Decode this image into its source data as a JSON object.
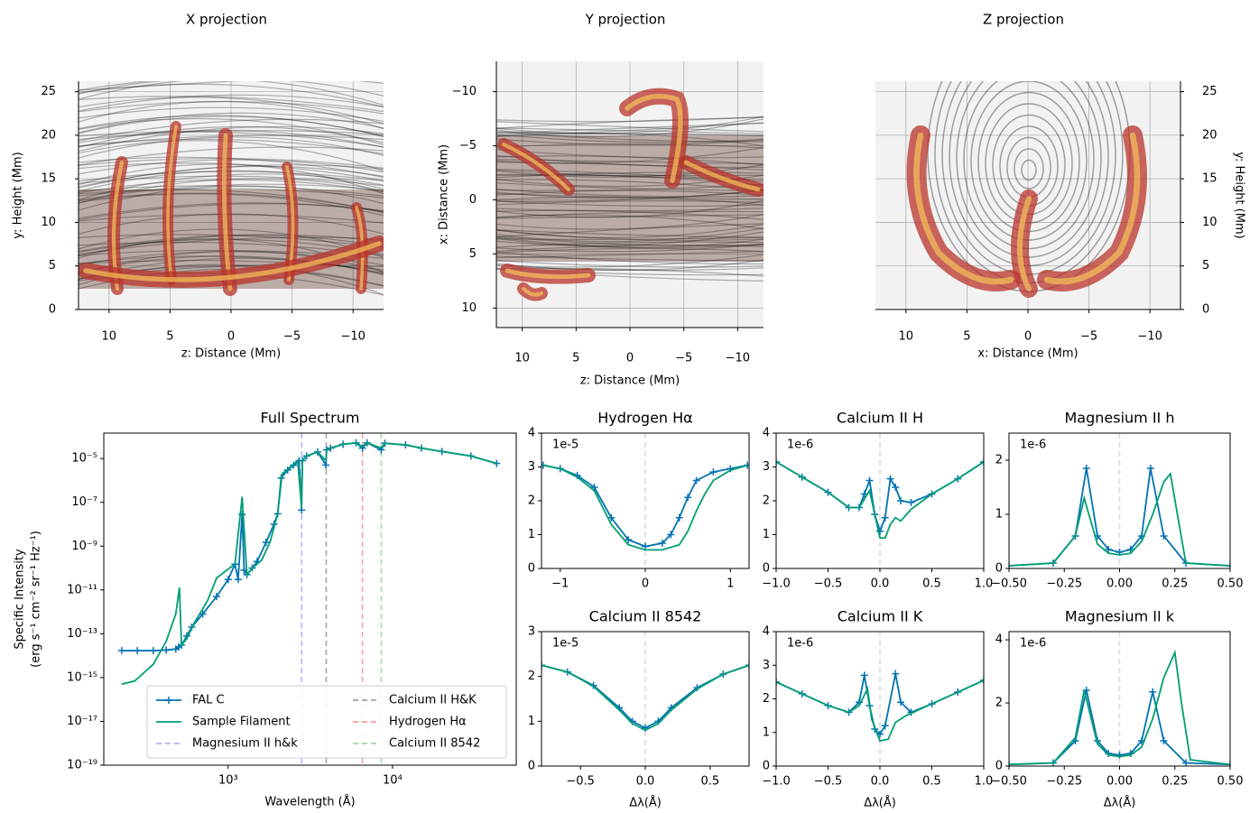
{
  "chart_data": [
    {
      "type": "projection",
      "title": "X projection",
      "xlabel": "z: Distance (Mm)",
      "ylabel": "y: Height (Mm)",
      "xlim": [
        12.5,
        -12.5
      ],
      "ylim": [
        0,
        26.2
      ],
      "xticks": [
        10,
        5,
        0,
        {
          "value": -5,
          "label": "−5"
        },
        {
          "value": -10,
          "label": "−10"
        }
      ],
      "yticks": [
        0,
        5,
        10,
        15,
        20,
        25
      ],
      "grid": true,
      "yaxis": "left"
    },
    {
      "type": "projection",
      "title": "Y projection",
      "xlabel": "z: Distance (Mm)",
      "ylabel": "x: Distance (Mm)",
      "xlim": [
        12.4,
        -12.4
      ],
      "ylim": [
        11.8,
        -12.8
      ],
      "xticks": [
        10,
        5,
        0,
        {
          "value": -5,
          "label": "−5"
        },
        {
          "value": -10,
          "label": "−10"
        }
      ],
      "yticks": [
        {
          "value": -10,
          "label": "−10"
        },
        {
          "value": -5,
          "label": "−5"
        },
        0,
        5,
        10
      ],
      "grid": true,
      "yaxis": "left"
    },
    {
      "type": "projection",
      "title": "Z projection",
      "xlabel": "x: Distance (Mm)",
      "ylabel": "y: Height (Mm)",
      "xlim": [
        12.5,
        -12.5
      ],
      "ylim": [
        0,
        26.2
      ],
      "xticks": [
        10,
        5,
        0,
        {
          "value": -5,
          "label": "−5"
        },
        {
          "value": -10,
          "label": "−10"
        }
      ],
      "yticks": [
        0,
        5,
        10,
        15,
        20,
        25
      ],
      "grid": true,
      "yaxis": "right"
    },
    {
      "type": "line",
      "title": "Full Spectrum",
      "xlabel": "Wavelength (Å)",
      "ylabel": [
        "Specific Intensity",
        "(erg s⁻¹ cm⁻² sr⁻¹ Hz⁻¹)"
      ],
      "xscale": "log",
      "yscale": "log",
      "xlim": [
        175,
        56600
      ],
      "ylim": [
        1e-19,
        0.000145
      ],
      "xticks": [
        {
          "value": 1000,
          "label": "10³"
        },
        {
          "value": 10000,
          "label": "10⁴"
        }
      ],
      "yticks": [
        {
          "value": 1e-19,
          "label": "10⁻¹⁹"
        },
        {
          "value": 1e-17,
          "label": "10⁻¹⁷"
        },
        {
          "value": 1e-15,
          "label": "10⁻¹⁵"
        },
        {
          "value": 1e-13,
          "label": "10⁻¹³"
        },
        {
          "value": 1e-11,
          "label": "10⁻¹¹"
        },
        {
          "value": 1e-09,
          "label": "10⁻⁹"
        },
        {
          "value": 1e-07,
          "label": "10⁻⁷"
        },
        {
          "value": 1e-05,
          "label": "10⁻⁵"
        }
      ],
      "legend": "lower center",
      "series": [
        {
          "name": "FAL C",
          "color": "#0072b2",
          "marker": "+",
          "x": [
            225,
            280,
            350,
            420,
            480,
            500,
            520,
            560,
            600,
            700,
            850,
            1000,
            1100,
            1150,
            1216,
            1250,
            1300,
            1400,
            1500,
            1700,
            1900,
            2000,
            2100,
            2300,
            2500,
            2700,
            2795,
            2830,
            3000,
            3500,
            3934,
            3970,
            4200,
            5000,
            6000,
            6563,
            7000,
            8542,
            9000,
            12000,
            15000,
            20000,
            30000,
            43000
          ],
          "values": [
            1.7e-14,
            1.7e-14,
            1.7e-14,
            1.8e-14,
            2e-14,
            2.5e-14,
            3e-14,
            8e-14,
            2e-13,
            8e-13,
            5e-12,
            3e-11,
            1.5e-10,
            3e-11,
            2.8e-08,
            8e-11,
            5e-11,
            1e-10,
            2e-10,
            1.5e-09,
            1e-08,
            3e-08,
            1.3e-06,
            3e-06,
            5e-06,
            8e-06,
            4.4e-08,
            8e-06,
            1.3e-05,
            2e-05,
            5e-06,
            2.5e-05,
            3e-05,
            4.5e-05,
            5.2e-05,
            3e-05,
            5.2e-05,
            2.5e-05,
            5e-05,
            4.2e-05,
            3e-05,
            2.1e-05,
            1.3e-05,
            6e-06
          ]
        },
        {
          "name": "Sample Filament",
          "color": "#009e73",
          "x": [
            225,
            270,
            350,
            420,
            480,
            505,
            520,
            560,
            620,
            750,
            850,
            1000,
            1100,
            1216,
            1300,
            1400,
            1600,
            1800,
            2000,
            2130,
            2650,
            2795,
            2830,
            3000,
            3500,
            3934,
            3970,
            4200,
            5000,
            6000,
            6563,
            7000,
            8542,
            9000,
            12000,
            15000,
            20000,
            30000,
            43000
          ],
          "values": [
            5e-16,
            7e-16,
            4e-15,
            4.6e-14,
            8e-13,
            1.3e-11,
            3e-14,
            6e-14,
            3e-13,
            3.3e-12,
            3.5e-11,
            9e-11,
            1.5e-10,
            1.8e-07,
            5e-11,
            1e-10,
            2.3e-10,
            1.6e-09,
            3e-08,
            2e-06,
            8e-06,
            6e-08,
            8e-06,
            1.3e-05,
            2e-05,
            8e-06,
            2.5e-05,
            3e-05,
            4.5e-05,
            5.2e-05,
            3.5e-05,
            5.2e-05,
            3e-05,
            5e-05,
            4.2e-05,
            3e-05,
            2.1e-05,
            1.3e-05,
            6e-06
          ]
        }
      ],
      "vlines": [
        {
          "name": "Magnesium II h&k",
          "color": "#b0b0ff",
          "x": 2800
        },
        {
          "name": "Calcium II H&K",
          "color": "#a0a0a0",
          "x": 3950
        },
        {
          "name": "Hydrogen Hα",
          "color": "#ff9a9a",
          "x": 6563
        },
        {
          "name": "Calcium II 8542",
          "color": "#a0d8a0",
          "x": 8542
        }
      ]
    },
    {
      "type": "line",
      "title": "Hydrogen Hα",
      "offset_text": "1e-5",
      "center_line": 0,
      "xlim": [
        -1.22,
        1.22
      ],
      "ylim": [
        0,
        4
      ],
      "xticks": [
        {
          "value": -1,
          "label": "−1"
        },
        0,
        1
      ],
      "yticks": [
        0,
        1,
        2,
        3,
        4
      ],
      "series": [
        {
          "name": "FAL C",
          "color": "#0072b2",
          "marker": "+",
          "x": [
            -1.2,
            -1.0,
            -0.8,
            -0.6,
            -0.4,
            -0.2,
            0,
            0.2,
            0.3,
            0.4,
            0.5,
            0.6,
            0.8,
            1.0,
            1.2
          ],
          "values": [
            3.05,
            2.95,
            2.75,
            2.4,
            1.5,
            0.85,
            0.65,
            0.75,
            1.0,
            1.5,
            2.1,
            2.6,
            2.85,
            2.95,
            3.05
          ]
        },
        {
          "name": "Sample Filament",
          "color": "#009e73",
          "x": [
            -1.2,
            -1.0,
            -0.8,
            -0.6,
            -0.4,
            -0.2,
            0,
            0.2,
            0.4,
            0.5,
            0.6,
            0.7,
            0.8,
            1.0,
            1.2
          ],
          "values": [
            3.05,
            2.95,
            2.7,
            2.3,
            1.3,
            0.7,
            0.55,
            0.55,
            0.7,
            1.1,
            1.7,
            2.2,
            2.6,
            2.9,
            3.05
          ]
        }
      ]
    },
    {
      "type": "line",
      "title": "Calcium II H",
      "offset_text": "1e-6",
      "center_line": 0,
      "xlim": [
        -1,
        1
      ],
      "ylim": [
        0,
        4
      ],
      "xticks": [
        {
          "value": -1,
          "label": "−1.0"
        },
        {
          "value": -0.5,
          "label": "−0.5"
        },
        {
          "value": 0,
          "label": "0.0"
        },
        0.5,
        {
          "value": 1,
          "label": "1.0"
        }
      ],
      "yticks": [
        0,
        1,
        2,
        3,
        4
      ],
      "series": [
        {
          "name": "FAL C",
          "color": "#0072b2",
          "marker": "+",
          "x": [
            -1,
            -0.75,
            -0.5,
            -0.3,
            -0.2,
            -0.15,
            -0.1,
            -0.05,
            0,
            0.05,
            0.1,
            0.15,
            0.2,
            0.3,
            0.5,
            0.75,
            1
          ],
          "values": [
            3.15,
            2.7,
            2.25,
            1.8,
            1.8,
            2.2,
            2.6,
            1.6,
            1.1,
            1.5,
            2.65,
            2.4,
            2.0,
            1.95,
            2.2,
            2.65,
            3.15
          ]
        },
        {
          "name": "Sample Filament",
          "color": "#009e73",
          "x": [
            -1,
            -0.75,
            -0.5,
            -0.3,
            -0.2,
            -0.1,
            -0.05,
            0,
            0.05,
            0.1,
            0.15,
            0.2,
            0.3,
            0.5,
            0.75,
            1
          ],
          "values": [
            3.15,
            2.7,
            2.25,
            1.8,
            1.8,
            2.3,
            1.6,
            0.9,
            0.9,
            1.3,
            1.5,
            1.4,
            1.75,
            2.2,
            2.65,
            3.15
          ]
        }
      ]
    },
    {
      "type": "line",
      "title": "Magnesium II h",
      "offset_text": "1e-6",
      "center_line": 0,
      "xlim": [
        -0.5,
        0.5
      ],
      "ylim": [
        0,
        2.5
      ],
      "xticks": [
        {
          "value": -0.5,
          "label": "−0.50"
        },
        {
          "value": -0.25,
          "label": "−0.25"
        },
        {
          "value": 0,
          "label": "0.00"
        },
        0.25,
        {
          "value": 0.5,
          "label": "0.50"
        }
      ],
      "yticks": [
        0,
        1,
        2
      ],
      "series": [
        {
          "name": "FAL C",
          "color": "#0072b2",
          "marker": "+",
          "x": [
            -0.5,
            -0.3,
            -0.2,
            -0.15,
            -0.1,
            -0.05,
            0,
            0.05,
            0.1,
            0.14,
            0.2,
            0.3,
            0.5
          ],
          "values": [
            0.05,
            0.1,
            0.6,
            1.85,
            0.6,
            0.35,
            0.3,
            0.35,
            0.6,
            1.85,
            0.6,
            0.1,
            0.05
          ]
        },
        {
          "name": "Sample Filament",
          "color": "#009e73",
          "x": [
            -0.5,
            -0.3,
            -0.2,
            -0.16,
            -0.1,
            -0.05,
            0,
            0.05,
            0.1,
            0.15,
            0.2,
            0.23,
            0.27,
            0.3,
            0.5
          ],
          "values": [
            0.05,
            0.1,
            0.6,
            1.3,
            0.45,
            0.28,
            0.25,
            0.28,
            0.5,
            1.0,
            1.6,
            1.75,
            0.8,
            0.1,
            0.05
          ]
        }
      ]
    },
    {
      "type": "line",
      "title": "Calcium II 8542",
      "offset_text": "1e-5",
      "center_line": 0,
      "xlabel": "Δλ(Å)",
      "xlim": [
        -0.8,
        0.8
      ],
      "ylim": [
        0,
        3
      ],
      "xticks": [
        {
          "value": -0.5,
          "label": "−0.5"
        },
        {
          "value": 0,
          "label": "0.0"
        },
        0.5
      ],
      "yticks": [
        0,
        1,
        2,
        3
      ],
      "series": [
        {
          "name": "FAL C",
          "color": "#0072b2",
          "marker": "+",
          "x": [
            -0.8,
            -0.6,
            -0.4,
            -0.2,
            -0.1,
            0,
            0.1,
            0.2,
            0.4,
            0.6,
            0.8
          ],
          "values": [
            2.25,
            2.1,
            1.8,
            1.3,
            1.0,
            0.85,
            1.0,
            1.3,
            1.75,
            2.05,
            2.25
          ]
        },
        {
          "name": "Sample Filament",
          "color": "#009e73",
          "x": [
            -0.8,
            -0.6,
            -0.4,
            -0.2,
            -0.1,
            0,
            0.1,
            0.2,
            0.4,
            0.6,
            0.8
          ],
          "values": [
            2.25,
            2.1,
            1.78,
            1.25,
            0.95,
            0.8,
            0.95,
            1.25,
            1.72,
            2.05,
            2.25
          ]
        }
      ]
    },
    {
      "type": "line",
      "title": "Calcium II K",
      "offset_text": "1e-6",
      "center_line": 0,
      "xlabel": "Δλ(Å)",
      "xlim": [
        -1,
        1
      ],
      "ylim": [
        0,
        4
      ],
      "xticks": [
        {
          "value": -1,
          "label": "−1.0"
        },
        {
          "value": -0.5,
          "label": "−0.5"
        },
        {
          "value": 0,
          "label": "0.0"
        },
        0.5,
        {
          "value": 1,
          "label": "1.0"
        }
      ],
      "yticks": [
        0,
        1,
        2,
        3,
        4
      ],
      "series": [
        {
          "name": "FAL C",
          "color": "#0072b2",
          "marker": "+",
          "x": [
            -1,
            -0.75,
            -0.5,
            -0.3,
            -0.2,
            -0.15,
            -0.1,
            -0.05,
            0,
            0.05,
            0.15,
            0.2,
            0.3,
            0.5,
            0.75,
            1
          ],
          "values": [
            2.5,
            2.15,
            1.8,
            1.6,
            1.9,
            2.7,
            1.8,
            1.1,
            0.95,
            1.2,
            2.75,
            1.9,
            1.6,
            1.85,
            2.2,
            2.55
          ]
        },
        {
          "name": "Sample Filament",
          "color": "#009e73",
          "x": [
            -1,
            -0.75,
            -0.5,
            -0.3,
            -0.2,
            -0.12,
            -0.08,
            0,
            0.08,
            0.15,
            0.25,
            0.5,
            0.75,
            1
          ],
          "values": [
            2.5,
            2.15,
            1.8,
            1.6,
            1.8,
            2.3,
            1.4,
            0.75,
            0.8,
            1.3,
            1.5,
            1.85,
            2.2,
            2.55
          ]
        }
      ]
    },
    {
      "type": "line",
      "title": "Magnesium II k",
      "offset_text": "1e-6",
      "center_line": 0,
      "xlabel": "Δλ(Å)",
      "xlim": [
        -0.5,
        0.5
      ],
      "ylim": [
        0,
        4.26
      ],
      "xticks": [
        {
          "value": -0.5,
          "label": "−0.50"
        },
        {
          "value": -0.25,
          "label": "−0.25"
        },
        {
          "value": 0,
          "label": "0.00"
        },
        0.25,
        {
          "value": 0.5,
          "label": "0.50"
        }
      ],
      "yticks": [
        0,
        2,
        4
      ],
      "series": [
        {
          "name": "FAL C",
          "color": "#0072b2",
          "marker": "+",
          "x": [
            -0.5,
            -0.3,
            -0.2,
            -0.15,
            -0.1,
            -0.05,
            0,
            0.05,
            0.1,
            0.15,
            0.2,
            0.3,
            0.5
          ],
          "values": [
            0.05,
            0.1,
            0.8,
            2.4,
            0.8,
            0.4,
            0.35,
            0.4,
            0.8,
            2.35,
            0.8,
            0.1,
            0.05
          ]
        },
        {
          "name": "Sample Filament",
          "color": "#009e73",
          "x": [
            -0.5,
            -0.3,
            -0.2,
            -0.16,
            -0.1,
            -0.05,
            0,
            0.05,
            0.1,
            0.15,
            0.2,
            0.25,
            0.28,
            0.32,
            0.5
          ],
          "values": [
            0.05,
            0.1,
            0.9,
            2.4,
            0.7,
            0.35,
            0.3,
            0.35,
            0.6,
            1.5,
            2.8,
            3.6,
            2.0,
            0.2,
            0.05
          ]
        }
      ]
    }
  ]
}
